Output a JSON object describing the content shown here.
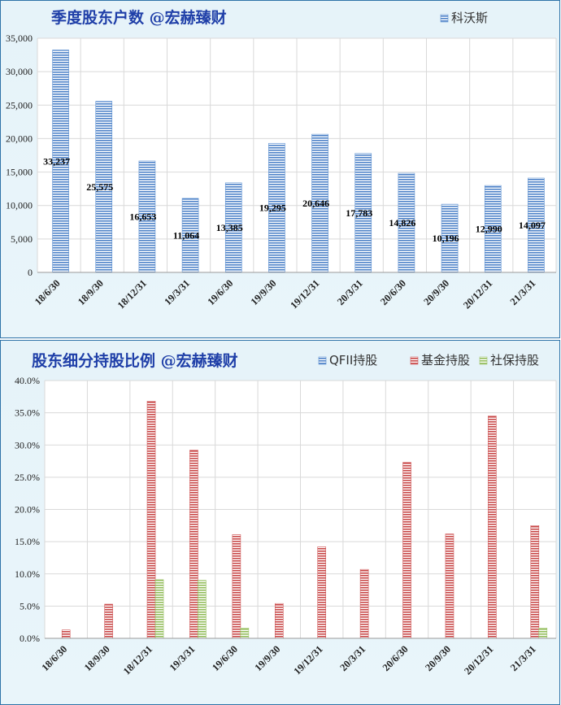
{
  "chart_data": [
    {
      "type": "bar",
      "title": "季度股东户数 @宏赫臻财",
      "categories": [
        "18/6/30",
        "18/9/30",
        "18/12/31",
        "19/3/31",
        "19/6/30",
        "19/9/30",
        "19/12/31",
        "20/3/31",
        "20/6/30",
        "20/9/30",
        "20/12/31",
        "21/3/31"
      ],
      "series": [
        {
          "name": "科沃斯",
          "color": "#5b8fd1",
          "values": [
            33237,
            25575,
            16653,
            11064,
            13385,
            19295,
            20646,
            17783,
            14826,
            10196,
            12990,
            14097
          ],
          "data_labels": [
            "33,237",
            "25,575",
            "16,653",
            "11,064",
            "13,385",
            "19,295",
            "20,646",
            "17,783",
            "14,826",
            "10,196",
            "12,990",
            "14,097"
          ]
        }
      ],
      "yticks": [
        "0",
        "5,000",
        "10,000",
        "15,000",
        "20,000",
        "25,000",
        "30,000",
        "35,000"
      ],
      "ylim": [
        0,
        35000
      ],
      "grid": true,
      "legend": "top-right"
    },
    {
      "type": "bar",
      "title": "股东细分持股比例 @宏赫臻财",
      "categories": [
        "18/6/30",
        "18/9/30",
        "18/12/31",
        "19/3/31",
        "19/6/30",
        "19/9/30",
        "19/12/31",
        "20/3/31",
        "20/6/30",
        "20/9/30",
        "20/12/31",
        "21/3/31"
      ],
      "series": [
        {
          "name": "QFII持股",
          "color": "#5b8fd1",
          "values": [
            0,
            0,
            0,
            0,
            0,
            0,
            0,
            0,
            0,
            0,
            0,
            0
          ]
        },
        {
          "name": "基金持股",
          "color": "#d05a5a",
          "values": [
            1.3,
            5.3,
            36.8,
            29.2,
            16.1,
            5.4,
            14.2,
            10.7,
            27.3,
            16.2,
            34.5,
            17.5
          ]
        },
        {
          "name": "社保持股",
          "color": "#9dc36a",
          "values": [
            0,
            0,
            9.1,
            9.0,
            1.6,
            0,
            0,
            0,
            0,
            0,
            0,
            1.6
          ]
        }
      ],
      "yticks": [
        "0.0%",
        "5.0%",
        "10.0%",
        "15.0%",
        "20.0%",
        "25.0%",
        "30.0%",
        "35.0%",
        "40.0%"
      ],
      "ylim": [
        0,
        40
      ],
      "grid": true,
      "legend": "top-right"
    }
  ]
}
